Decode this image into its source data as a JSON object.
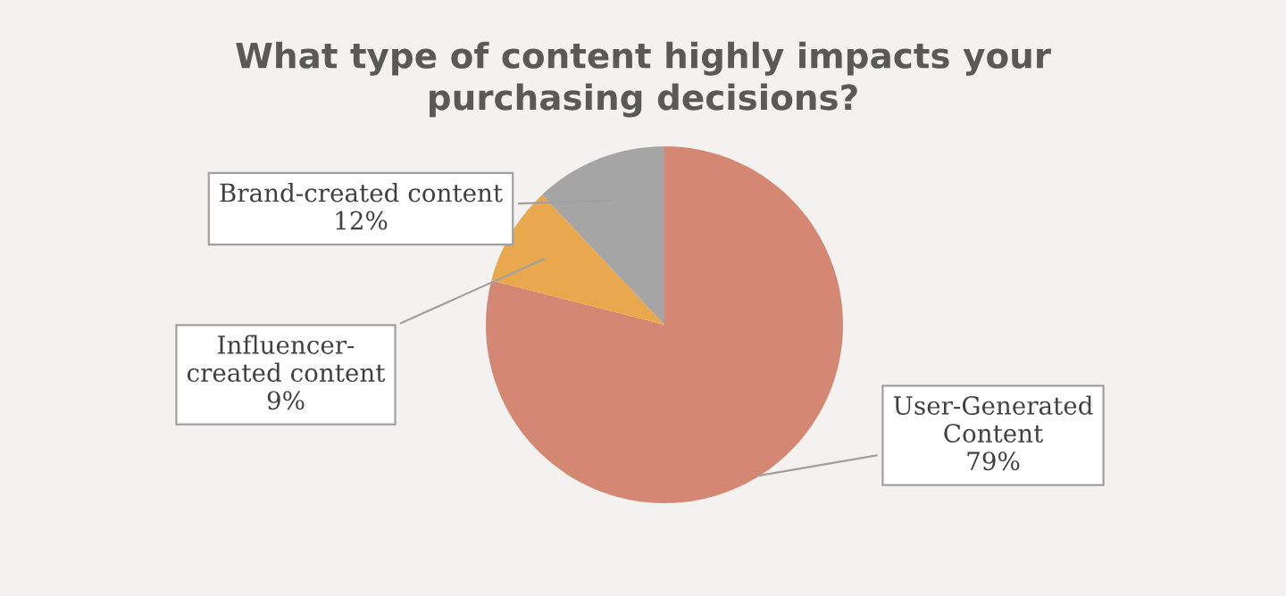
{
  "chart_data": {
    "type": "pie",
    "title": "What type of content highly impacts your\npurchasing decisions?",
    "categories": [
      "User-Generated\nContent",
      "Influencer-\ncreated content",
      "Brand-created content"
    ],
    "values": [
      79,
      9,
      12
    ],
    "value_labels": [
      "79%",
      "9%",
      "12%"
    ],
    "colors": [
      "#d48773",
      "#e9a84e",
      "#a5a5a5"
    ],
    "legend": false
  }
}
